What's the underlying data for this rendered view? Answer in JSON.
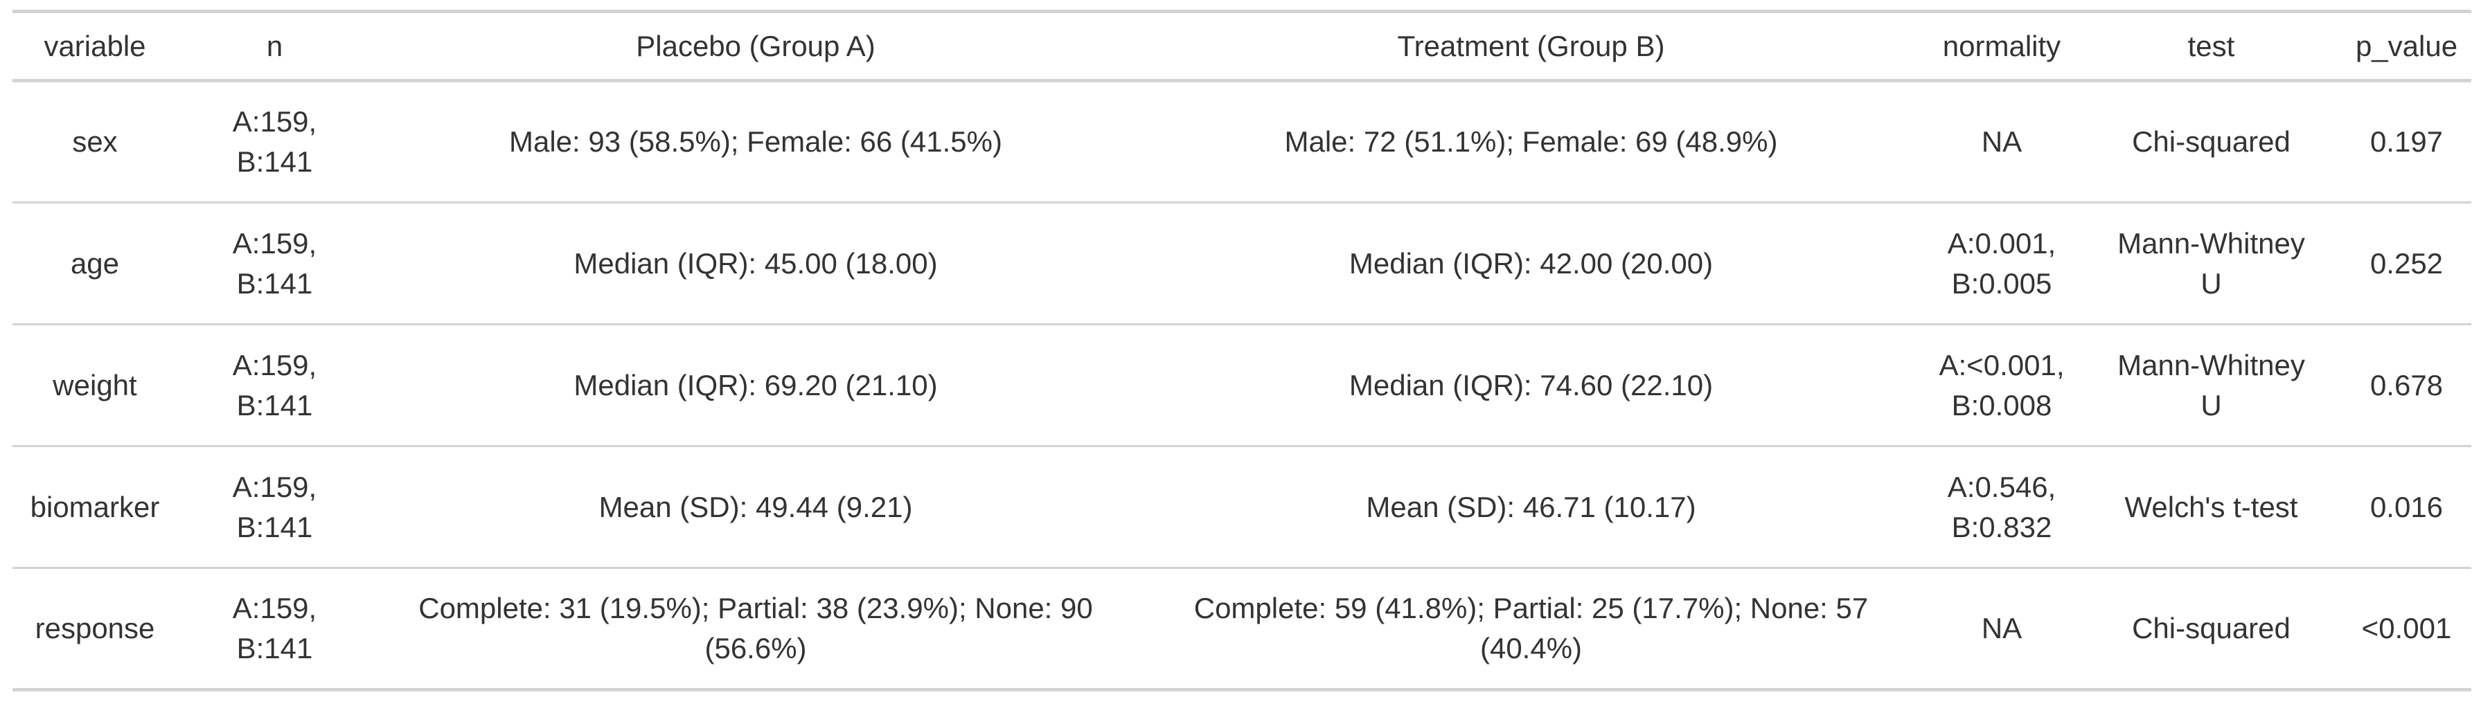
{
  "table": {
    "header": [
      "variable",
      "n",
      "Placebo (Group A)",
      "Treatment (Group B)",
      "normality",
      "test",
      "p_value"
    ],
    "rows": [
      [
        "sex",
        "A:159, B:141",
        "Male: 93 (58.5%); Female: 66 (41.5%)",
        "Male: 72 (51.1%); Female: 69 (48.9%)",
        "NA",
        "Chi-squared",
        "0.197"
      ],
      [
        "age",
        "A:159, B:141",
        "Median (IQR): 45.00 (18.00)",
        "Median (IQR): 42.00 (20.00)",
        "A:0.001, B:0.005",
        "Mann-Whitney U",
        "0.252"
      ],
      [
        "weight",
        "A:159, B:141",
        "Median (IQR): 69.20 (21.10)",
        "Median (IQR): 74.60 (22.10)",
        "A:<0.001, B:0.008",
        "Mann-Whitney U",
        "0.678"
      ],
      [
        "biomarker",
        "A:159, B:141",
        "Mean (SD): 49.44 (9.21)",
        "Mean (SD): 46.71 (10.17)",
        "A:0.546, B:0.832",
        "Welch's t-test",
        "0.016"
      ],
      [
        "response",
        "A:159, B:141",
        "Complete: 31 (19.5%); Partial: 38 (23.9%); None: 90 (56.6%)",
        "Complete: 59 (41.8%); Partial: 25 (17.7%); None: 57 (40.4%)",
        "NA",
        "Chi-squared",
        "<0.001"
      ]
    ]
  }
}
